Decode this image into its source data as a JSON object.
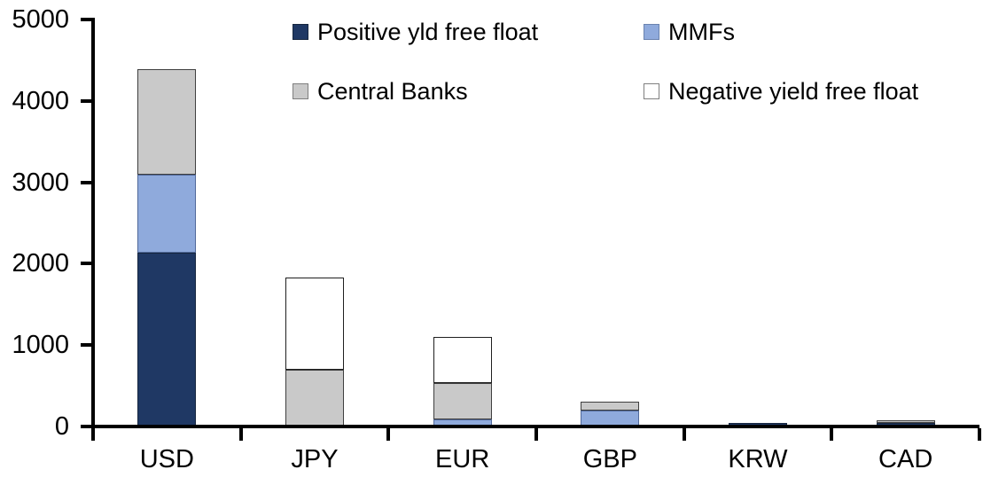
{
  "chart_data": {
    "type": "bar",
    "stacked": true,
    "title": "",
    "xlabel": "",
    "ylabel": "",
    "categories": [
      "USD",
      "JPY",
      "EUR",
      "GBP",
      "KRW",
      "CAD"
    ],
    "series": [
      {
        "name": "Positive yld free float",
        "color": "#1F3864",
        "border_color": "#16263F",
        "values": [
          2130,
          0,
          0,
          0,
          45,
          45
        ]
      },
      {
        "name": "MMFs",
        "color": "#8FAADC",
        "border_color": "#51699A",
        "values": [
          960,
          0,
          90,
          200,
          0,
          0
        ]
      },
      {
        "name": "Central Banks",
        "color": "#C9C9C9",
        "border_color": "#3F3F3F",
        "values": [
          1300,
          700,
          440,
          105,
          0,
          30
        ]
      },
      {
        "name": "Negative yield free float",
        "color": "#FFFFFF",
        "border_color": "#1F1F1F",
        "values": [
          0,
          1130,
          570,
          0,
          0,
          0
        ]
      }
    ],
    "ylim": [
      0,
      5000
    ],
    "ytick_labels": [
      "0",
      "1000",
      "2000",
      "3000",
      "4000",
      "5000"
    ],
    "grid": false,
    "legend_position": "top",
    "legend_columns": 2,
    "axis_color": "#000000",
    "background_color": "#FFFFFF",
    "legend_swatch_border_colors": [
      "#16263F",
      "#6B83AF",
      "#7F7F7F",
      "#808080"
    ]
  }
}
